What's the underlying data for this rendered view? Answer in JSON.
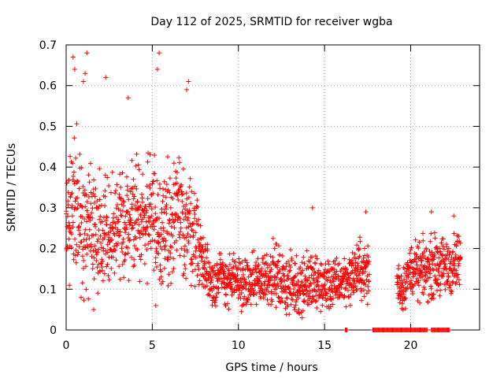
{
  "chart_data": {
    "type": "scatter",
    "title": "Day 112 of 2025, SRMTID for receiver wgba",
    "xlabel": "GPS time / hours",
    "ylabel": "SRMTID / TECUs",
    "xlim": [
      0,
      24
    ],
    "ylim": [
      0,
      0.7
    ],
    "x_ticks": [
      0,
      5,
      10,
      15,
      20
    ],
    "x_tick_labels": [
      "0",
      "5",
      "10",
      "15",
      "20"
    ],
    "y_ticks": [
      0,
      0.1,
      0.2,
      0.3,
      0.4,
      0.5,
      0.6,
      0.7
    ],
    "y_tick_labels": [
      "0",
      "0.1",
      "0.2",
      "0.3",
      "0.4",
      "0.5",
      "0.6",
      "0.7"
    ],
    "grid": true,
    "marker": "+",
    "marker_color": "#ff0000",
    "series": [
      {
        "name": "SRMTID",
        "envelope_description": "hourly median and spread of the dense scatter",
        "hourly_median": [
          {
            "x": 0.0,
            "y": 0.26
          },
          {
            "x": 0.5,
            "y": 0.33
          },
          {
            "x": 1.0,
            "y": 0.28
          },
          {
            "x": 1.5,
            "y": 0.22
          },
          {
            "x": 2.0,
            "y": 0.22
          },
          {
            "x": 2.5,
            "y": 0.24
          },
          {
            "x": 3.0,
            "y": 0.25
          },
          {
            "x": 3.5,
            "y": 0.24
          },
          {
            "x": 4.0,
            "y": 0.3
          },
          {
            "x": 4.5,
            "y": 0.27
          },
          {
            "x": 5.0,
            "y": 0.29
          },
          {
            "x": 5.5,
            "y": 0.24
          },
          {
            "x": 6.0,
            "y": 0.27
          },
          {
            "x": 6.5,
            "y": 0.28
          },
          {
            "x": 7.0,
            "y": 0.26
          },
          {
            "x": 7.5,
            "y": 0.24
          },
          {
            "x": 8.0,
            "y": 0.16
          },
          {
            "x": 8.5,
            "y": 0.12
          },
          {
            "x": 9.0,
            "y": 0.13
          },
          {
            "x": 9.5,
            "y": 0.12
          },
          {
            "x": 10.0,
            "y": 0.12
          },
          {
            "x": 10.5,
            "y": 0.11
          },
          {
            "x": 11.0,
            "y": 0.12
          },
          {
            "x": 11.5,
            "y": 0.13
          },
          {
            "x": 12.0,
            "y": 0.14
          },
          {
            "x": 12.5,
            "y": 0.12
          },
          {
            "x": 13.0,
            "y": 0.11
          },
          {
            "x": 13.5,
            "y": 0.11
          },
          {
            "x": 14.0,
            "y": 0.12
          },
          {
            "x": 14.5,
            "y": 0.11
          },
          {
            "x": 15.0,
            "y": 0.11
          },
          {
            "x": 15.5,
            "y": 0.11
          },
          {
            "x": 16.0,
            "y": 0.12
          },
          {
            "x": 16.5,
            "y": 0.13
          },
          {
            "x": 17.0,
            "y": 0.15
          },
          {
            "x": 17.5,
            "y": 0.14
          },
          {
            "x": 19.2,
            "y": 0.12
          },
          {
            "x": 19.5,
            "y": 0.1
          },
          {
            "x": 20.0,
            "y": 0.15
          },
          {
            "x": 20.5,
            "y": 0.14
          },
          {
            "x": 21.0,
            "y": 0.15
          },
          {
            "x": 21.5,
            "y": 0.16
          },
          {
            "x": 22.0,
            "y": 0.15
          },
          {
            "x": 22.5,
            "y": 0.16
          },
          {
            "x": 22.9,
            "y": 0.17
          }
        ],
        "hourly_spread": [
          {
            "x": 0.0,
            "y": 0.08
          },
          {
            "x": 1.0,
            "y": 0.12
          },
          {
            "x": 2.0,
            "y": 0.1
          },
          {
            "x": 3.0,
            "y": 0.09
          },
          {
            "x": 4.0,
            "y": 0.1
          },
          {
            "x": 5.0,
            "y": 0.1
          },
          {
            "x": 6.0,
            "y": 0.09
          },
          {
            "x": 7.0,
            "y": 0.1
          },
          {
            "x": 8.0,
            "y": 0.05
          },
          {
            "x": 10.0,
            "y": 0.04
          },
          {
            "x": 12.0,
            "y": 0.05
          },
          {
            "x": 14.0,
            "y": 0.05
          },
          {
            "x": 16.0,
            "y": 0.04
          },
          {
            "x": 17.5,
            "y": 0.05
          },
          {
            "x": 19.5,
            "y": 0.04
          },
          {
            "x": 21.0,
            "y": 0.05
          },
          {
            "x": 22.9,
            "y": 0.05
          }
        ],
        "outliers": [
          {
            "x": 0.4,
            "y": 0.67
          },
          {
            "x": 0.5,
            "y": 0.64
          },
          {
            "x": 1.2,
            "y": 0.68
          },
          {
            "x": 1.1,
            "y": 0.63
          },
          {
            "x": 1.0,
            "y": 0.61
          },
          {
            "x": 2.3,
            "y": 0.62
          },
          {
            "x": 5.4,
            "y": 0.68
          },
          {
            "x": 5.3,
            "y": 0.64
          },
          {
            "x": 7.1,
            "y": 0.61
          },
          {
            "x": 7.0,
            "y": 0.59
          },
          {
            "x": 3.6,
            "y": 0.57
          },
          {
            "x": 1.6,
            "y": 0.05
          },
          {
            "x": 5.2,
            "y": 0.06
          },
          {
            "x": 13.7,
            "y": 0.03
          },
          {
            "x": 14.3,
            "y": 0.3
          },
          {
            "x": 17.4,
            "y": 0.29
          },
          {
            "x": 21.2,
            "y": 0.29
          },
          {
            "x": 22.5,
            "y": 0.28
          }
        ],
        "zero_values_x_ranges": [
          [
            16.2,
            16.3
          ],
          [
            17.8,
            21.0
          ],
          [
            21.2,
            22.3
          ]
        ]
      }
    ]
  }
}
